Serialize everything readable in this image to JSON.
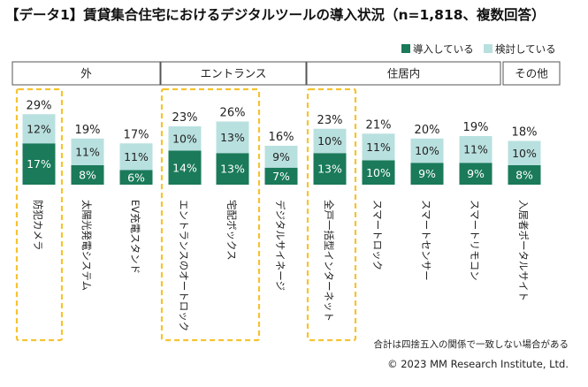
{
  "chart_data": {
    "type": "bar",
    "stacked": true,
    "title": "【データ1】賃貸集合住宅におけるデジタルツールの導入状況（n=1,818、複数回答）",
    "series": [
      {
        "name": "導入している",
        "color": "#1a7a5a",
        "values": [
          17,
          8,
          6,
          14,
          13,
          7,
          13,
          10,
          9,
          9,
          8
        ]
      },
      {
        "name": "検討している",
        "color": "#b8e0df",
        "values": [
          12,
          11,
          11,
          10,
          13,
          9,
          10,
          11,
          10,
          11,
          10
        ]
      }
    ],
    "totals": [
      29,
      19,
      17,
      23,
      26,
      16,
      23,
      21,
      20,
      19,
      18
    ],
    "categories": [
      "防犯カメラ",
      "太陽光発電システム",
      "EV充電スタンド",
      "エントランスのオートロック",
      "宅配ボックス",
      "デジタルサイネージ",
      "全戸一括型インターネット",
      "スマートロック",
      "スマートセンサー",
      "スマートリモコン",
      "入居者ポータルサイト"
    ],
    "groups": [
      {
        "label": "外",
        "count": 3
      },
      {
        "label": "エントランス",
        "count": 3
      },
      {
        "label": "住居内",
        "count": 4
      },
      {
        "label": "その他",
        "count": 1
      }
    ],
    "highlighted": [
      "防犯カメラ",
      "エントランスのオートロック",
      "宅配ボックス",
      "全戸一括型インターネット"
    ],
    "highlight_color": "#f5c330",
    "percent_suffix": "%"
  },
  "footer": {
    "note": "合計は四捨五入の関係で一致しない場合がある",
    "copyright": "© 2023 MM Research Institute, Ltd."
  }
}
